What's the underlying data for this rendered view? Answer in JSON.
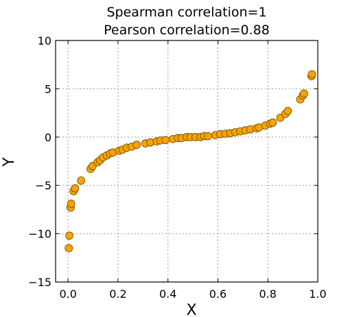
{
  "chart_data": {
    "type": "scatter",
    "title": [
      "Spearman correlation=1",
      "Pearson correlation=0.88"
    ],
    "xlabel": "X",
    "ylabel": "Y",
    "xlim": [
      -0.05,
      1.0
    ],
    "ylim": [
      -15,
      10
    ],
    "xticks": [
      0.0,
      0.2,
      0.4,
      0.6,
      0.8,
      1.0
    ],
    "xtick_labels": [
      "0.0",
      "0.2",
      "0.4",
      "0.6",
      "0.8",
      "1.0"
    ],
    "yticks": [
      -15,
      -10,
      -5,
      0,
      5,
      10
    ],
    "ytick_labels": [
      "−15",
      "−10",
      "−5",
      "0",
      "5",
      "10"
    ],
    "grid": true,
    "marker_color": "#f5a300",
    "series": [
      {
        "x": [
          0.003,
          0.005,
          0.01,
          0.012,
          0.022,
          0.028,
          0.052,
          0.09,
          0.098,
          0.118,
          0.128,
          0.14,
          0.155,
          0.168,
          0.18,
          0.205,
          0.218,
          0.235,
          0.255,
          0.275,
          0.31,
          0.33,
          0.355,
          0.37,
          0.39,
          0.42,
          0.44,
          0.455,
          0.475,
          0.49,
          0.51,
          0.53,
          0.545,
          0.56,
          0.59,
          0.61,
          0.63,
          0.65,
          0.67,
          0.69,
          0.71,
          0.73,
          0.755,
          0.765,
          0.79,
          0.81,
          0.82,
          0.85,
          0.87,
          0.88,
          0.93,
          0.94,
          0.945,
          0.975,
          0.977
        ],
        "y": [
          -11.5,
          -10.2,
          -7.3,
          -6.9,
          -5.6,
          -5.3,
          -4.5,
          -3.3,
          -3.0,
          -2.6,
          -2.4,
          -2.1,
          -1.9,
          -1.7,
          -1.6,
          -1.4,
          -1.3,
          -1.1,
          -1.0,
          -0.8,
          -0.65,
          -0.55,
          -0.45,
          -0.35,
          -0.3,
          -0.2,
          -0.1,
          -0.1,
          0.0,
          0.0,
          0.0,
          0.0,
          0.1,
          0.1,
          0.2,
          0.3,
          0.35,
          0.4,
          0.5,
          0.6,
          0.7,
          0.8,
          0.9,
          1.0,
          1.2,
          1.4,
          1.5,
          2.0,
          2.4,
          2.7,
          3.9,
          4.3,
          4.5,
          6.3,
          6.5
        ]
      }
    ]
  }
}
